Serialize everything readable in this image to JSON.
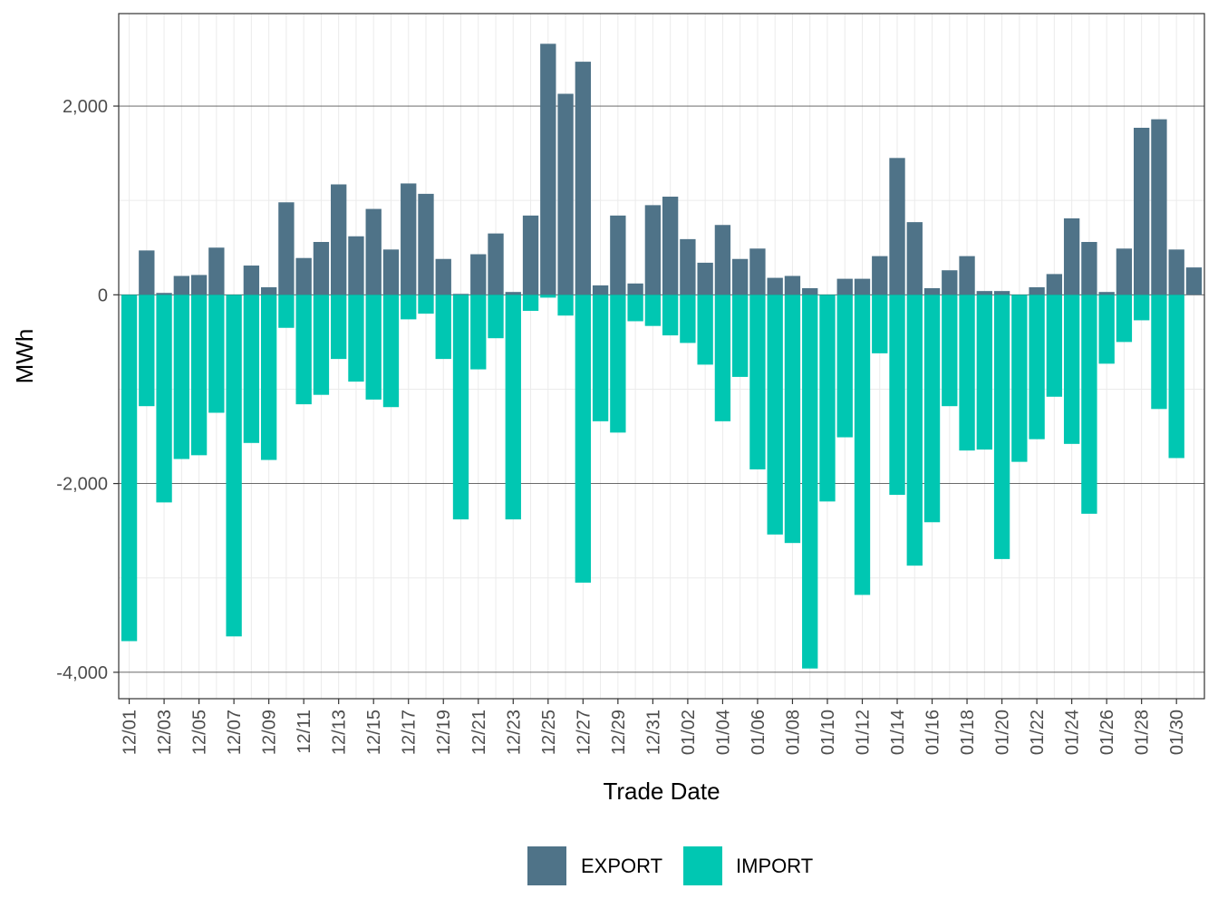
{
  "chart_data": {
    "type": "bar",
    "stacked": "diverging",
    "xlabel": "Trade Date",
    "ylabel": "MWh",
    "ylim": [
      -4280,
      2980
    ],
    "y_ticks": [
      2000,
      0,
      -2000,
      -4000
    ],
    "y_tick_labels": [
      "2,000",
      "0",
      "-2,000",
      "-4,000"
    ],
    "grid": true,
    "legend_position": "bottom",
    "categories": [
      "12/01",
      "12/02",
      "12/03",
      "12/04",
      "12/05",
      "12/06",
      "12/07",
      "12/08",
      "12/09",
      "12/10",
      "12/11",
      "12/12",
      "12/13",
      "12/14",
      "12/15",
      "12/16",
      "12/17",
      "12/18",
      "12/19",
      "12/20",
      "12/21",
      "12/22",
      "12/23",
      "12/24",
      "12/25",
      "12/26",
      "12/27",
      "12/28",
      "12/29",
      "12/30",
      "12/31",
      "01/01",
      "01/02",
      "01/03",
      "01/04",
      "01/05",
      "01/06",
      "01/07",
      "01/08",
      "01/09",
      "01/10",
      "01/11",
      "01/12",
      "01/13",
      "01/14",
      "01/15",
      "01/16",
      "01/17",
      "01/18",
      "01/19",
      "01/20",
      "01/21",
      "01/22",
      "01/23",
      "01/24",
      "01/25",
      "01/26",
      "01/27",
      "01/28",
      "01/29",
      "01/30",
      "01/31"
    ],
    "x_tick_labels": [
      "12/01",
      "12/03",
      "12/05",
      "12/07",
      "12/09",
      "12/11",
      "12/13",
      "12/15",
      "12/17",
      "12/19",
      "12/21",
      "12/23",
      "12/25",
      "12/27",
      "12/29",
      "12/31",
      "01/02",
      "01/04",
      "01/06",
      "01/08",
      "01/10",
      "01/12",
      "01/14",
      "01/16",
      "01/18",
      "01/20",
      "01/22",
      "01/24",
      "01/26",
      "01/28",
      "01/30"
    ],
    "series": [
      {
        "name": "EXPORT",
        "color": "#4f7388",
        "values": [
          0,
          470,
          20,
          200,
          210,
          500,
          0,
          310,
          80,
          980,
          390,
          560,
          1170,
          620,
          910,
          480,
          1180,
          1070,
          380,
          10,
          430,
          650,
          30,
          840,
          2660,
          2130,
          2470,
          100,
          840,
          120,
          950,
          1040,
          590,
          340,
          740,
          380,
          490,
          180,
          200,
          70,
          0,
          170,
          170,
          410,
          1450,
          770,
          70,
          260,
          410,
          40,
          40,
          0,
          80,
          220,
          810,
          560,
          30,
          490,
          1770,
          1860,
          480,
          290
        ]
      },
      {
        "name": "IMPORT",
        "color": "#00c7b2",
        "values": [
          -3670,
          -1180,
          -2200,
          -1740,
          -1700,
          -1250,
          -3620,
          -1570,
          -1750,
          -350,
          -1160,
          -1060,
          -680,
          -920,
          -1110,
          -1190,
          -260,
          -200,
          -680,
          -2380,
          -790,
          -460,
          -2380,
          -170,
          -30,
          -220,
          -3050,
          -1340,
          -1460,
          -280,
          -330,
          -430,
          -510,
          -740,
          -1340,
          -870,
          -1850,
          -2540,
          -2630,
          -3960,
          -2190,
          -1510,
          -3180,
          -620,
          -2120,
          -2870,
          -2410,
          -1180,
          -1650,
          -1640,
          -2800,
          -1770,
          -1530,
          -1080,
          -1580,
          -2320,
          -730,
          -500,
          -270,
          -1210,
          -1730,
          0
        ]
      }
    ]
  }
}
